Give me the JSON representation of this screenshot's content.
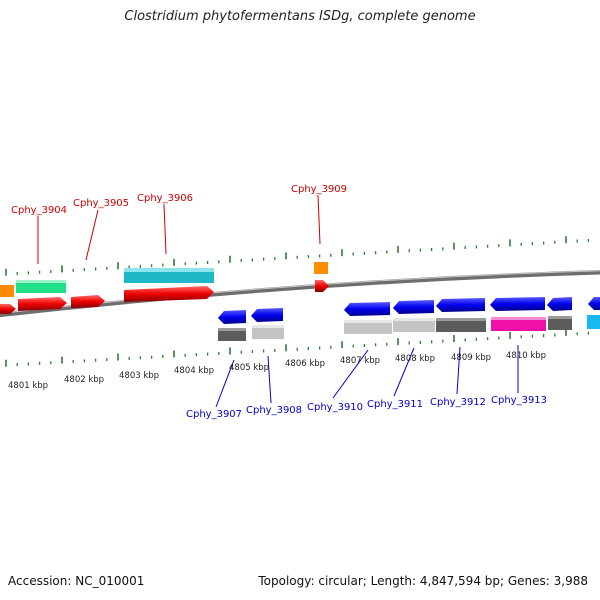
{
  "title": "Clostridium phytofermentans ISDg, complete genome",
  "footer": {
    "accession": "Accession: NC_010001",
    "stats": "Topology: circular; Length: 4,847,594 bp; Genes: 3,988"
  },
  "colors": {
    "forward_label": "#cc0000",
    "reverse_label": "#0000cc",
    "tick": "#2e7d32",
    "backbone": "#808080"
  },
  "scale_labels": [
    "4801 kbp",
    "4802 kbp",
    "4803 kbp",
    "4804 kbp",
    "4805 kbp",
    "4806 kbp",
    "4807 kbp",
    "4808 kbp",
    "4809 kbp",
    "4810 kbp"
  ],
  "forward_labels": [
    "Cphy_3904",
    "Cphy_3905",
    "Cphy_3906",
    "Cphy_3909"
  ],
  "reverse_labels": [
    "Cphy_3907",
    "Cphy_3908",
    "Cphy_3910",
    "Cphy_3911",
    "Cphy_3912",
    "Cphy_3913"
  ]
}
